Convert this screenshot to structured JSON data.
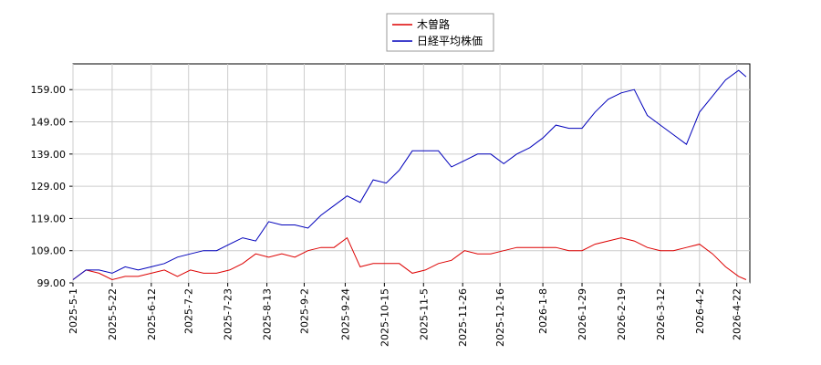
{
  "chart_data": {
    "type": "line",
    "x": [
      "2025-5-1",
      "2025-5-8",
      "2025-5-15",
      "2025-5-22",
      "2025-5-29",
      "2025-6-5",
      "2025-6-12",
      "2025-6-19",
      "2025-6-26",
      "2025-7-3",
      "2025-7-10",
      "2025-7-17",
      "2025-7-24",
      "2025-7-31",
      "2025-8-7",
      "2025-8-14",
      "2025-8-21",
      "2025-8-28",
      "2025-9-4",
      "2025-9-11",
      "2025-9-18",
      "2025-9-25",
      "2025-10-2",
      "2025-10-9",
      "2025-10-16",
      "2025-10-23",
      "2025-10-30",
      "2025-11-6",
      "2025-11-13",
      "2025-11-20",
      "2025-11-27",
      "2025-12-4",
      "2025-12-11",
      "2025-12-18",
      "2025-12-25",
      "2026-1-1",
      "2026-1-8",
      "2026-1-15",
      "2026-1-22",
      "2026-1-29",
      "2026-2-5",
      "2026-2-12",
      "2026-2-19",
      "2026-2-26",
      "2026-3-5",
      "2026-3-12",
      "2026-3-19",
      "2026-3-26",
      "2026-4-2",
      "2026-4-9",
      "2026-4-16",
      "2026-4-23",
      "2026-4-27"
    ],
    "series": [
      {
        "name": "木曽路",
        "color": "#dd0000",
        "values": [
          100,
          103,
          102,
          100,
          101,
          101,
          102,
          103,
          101,
          103,
          102,
          102,
          103,
          105,
          108,
          107,
          108,
          107,
          109,
          110,
          110,
          113,
          104,
          105,
          105,
          105,
          102,
          103,
          105,
          106,
          109,
          108,
          108,
          109,
          110,
          110,
          110,
          110,
          109,
          109,
          111,
          112,
          113,
          112,
          110,
          109,
          109,
          110,
          111,
          108,
          104,
          101,
          100
        ]
      },
      {
        "name": "日経平均株価",
        "color": "#0000bb",
        "values": [
          100,
          103,
          103,
          102,
          104,
          103,
          104,
          105,
          107,
          108,
          109,
          109,
          111,
          113,
          112,
          118,
          117,
          117,
          116,
          120,
          123,
          126,
          124,
          131,
          130,
          134,
          140,
          140,
          140,
          135,
          137,
          139,
          139,
          136,
          139,
          141,
          144,
          148,
          147,
          147,
          152,
          156,
          158,
          159,
          151,
          148,
          145,
          142,
          152,
          157,
          162,
          165,
          163
        ]
      }
    ],
    "xlim": [
      "2025-5-1",
      "2026-4-29"
    ],
    "xticks": [
      "2025-5-1",
      "2025-5-22",
      "2025-6-12",
      "2025-7-2",
      "2025-7-23",
      "2025-8-13",
      "2025-9-2",
      "2025-9-24",
      "2025-10-15",
      "2025-11-5",
      "2025-11-26",
      "2025-12-16",
      "2026-1-8",
      "2026-1-29",
      "2026-2-19",
      "2026-3-12",
      "2026-4-2",
      "2026-4-22"
    ],
    "ylim": [
      99,
      167
    ],
    "yticks": [
      {
        "value": 99,
        "label": "99.00"
      },
      {
        "value": 109,
        "label": "109.00"
      },
      {
        "value": 119,
        "label": "119.00"
      },
      {
        "value": 129,
        "label": "129.00"
      },
      {
        "value": 139,
        "label": "139.00"
      },
      {
        "value": 149,
        "label": "149.00"
      },
      {
        "value": 159,
        "label": "159.00"
      }
    ],
    "grid": true
  }
}
